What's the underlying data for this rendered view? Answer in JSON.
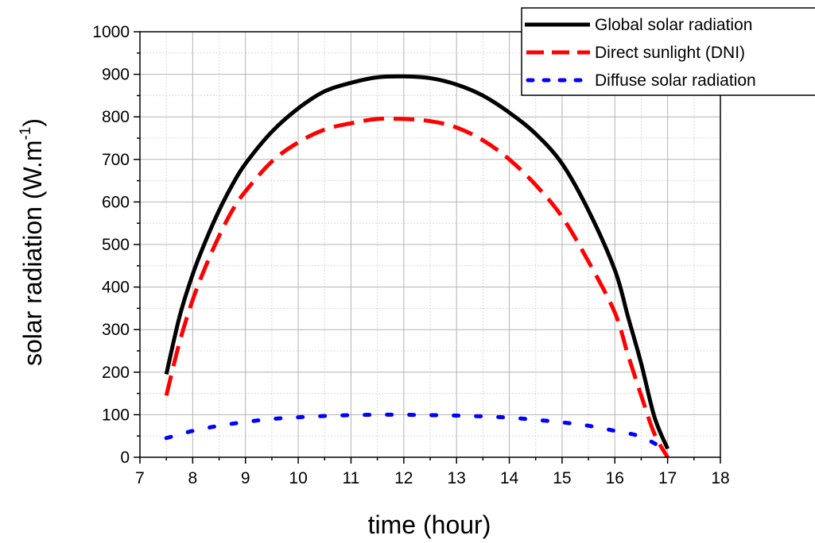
{
  "chart_data": {
    "type": "line",
    "xlabel": "time (hour)",
    "ylabel_main": "solar radiation (W.m",
    "ylabel_sup": "-1",
    "ylabel_close": ")",
    "xlim": [
      7,
      18
    ],
    "ylim": [
      0,
      1000
    ],
    "x_ticks": [
      7,
      8,
      9,
      10,
      11,
      12,
      13,
      14,
      15,
      16,
      17,
      18
    ],
    "y_ticks": [
      0,
      100,
      200,
      300,
      400,
      500,
      600,
      700,
      800,
      900,
      1000
    ],
    "grid": true,
    "legend_position": "top-right",
    "series": [
      {
        "name": "Global solar radiation",
        "color": "#000000",
        "style": "solid",
        "x": [
          7.5,
          7.75,
          8,
          8.25,
          8.5,
          8.75,
          9,
          9.5,
          10,
          10.5,
          11,
          11.5,
          12,
          12.5,
          13,
          13.5,
          14,
          14.5,
          15,
          15.5,
          16,
          16.25,
          16.5,
          16.75,
          17
        ],
        "y": [
          195,
          330,
          430,
          510,
          580,
          640,
          690,
          765,
          820,
          860,
          880,
          893,
          895,
          891,
          876,
          850,
          810,
          760,
          690,
          580,
          440,
          330,
          220,
          95,
          20
        ]
      },
      {
        "name": "Direct sunlight (DNI)",
        "color": "#ff0000",
        "style": "dashed",
        "x": [
          7.5,
          7.75,
          8,
          8.25,
          8.5,
          8.75,
          9,
          9.5,
          10,
          10.5,
          11,
          11.5,
          12,
          12.5,
          13,
          13.5,
          14,
          14.5,
          15,
          15.5,
          16,
          16.25,
          16.5,
          16.75,
          17
        ],
        "y": [
          145,
          270,
          370,
          450,
          520,
          580,
          625,
          695,
          740,
          770,
          785,
          795,
          795,
          790,
          775,
          745,
          700,
          640,
          565,
          460,
          340,
          240,
          145,
          55,
          0
        ]
      },
      {
        "name": "Diffuse solar radiation",
        "color": "#0000ff",
        "style": "dotted",
        "x": [
          7.5,
          8,
          8.5,
          9,
          9.5,
          10,
          10.5,
          11,
          11.5,
          12,
          12.5,
          13,
          13.5,
          14,
          14.5,
          15,
          15.5,
          16,
          16.5,
          17
        ],
        "y": [
          45,
          62,
          74,
          83,
          90,
          94,
          97,
          99,
          100,
          100,
          99,
          98,
          96,
          93,
          88,
          82,
          74,
          62,
          48,
          15
        ]
      }
    ]
  }
}
